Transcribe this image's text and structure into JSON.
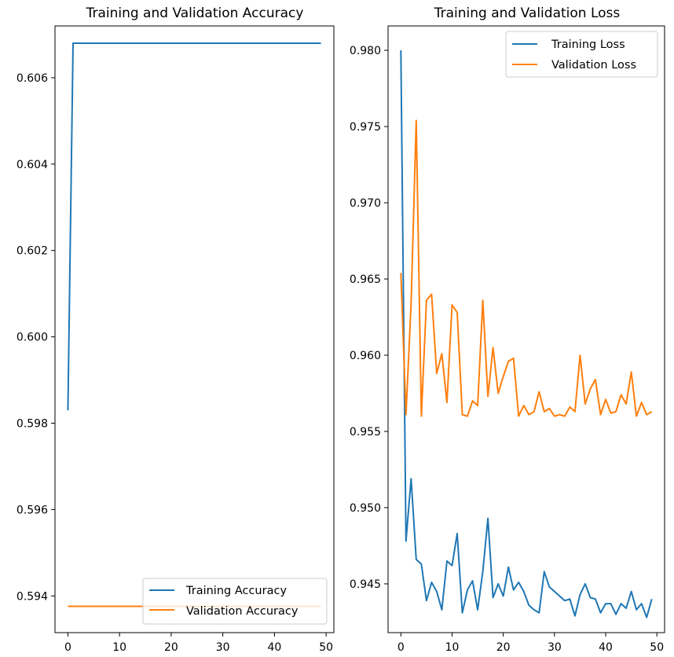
{
  "chart_data": [
    {
      "type": "line",
      "title": "Training and Validation Accuracy",
      "xlabel": "",
      "ylabel": "",
      "xlim": [
        -2.5,
        51.5
      ],
      "ylim": [
        0.59315,
        0.6072
      ],
      "xticks": [
        0,
        10,
        20,
        30,
        40,
        50
      ],
      "yticks": [
        0.594,
        0.596,
        0.598,
        0.6,
        0.602,
        0.604,
        0.606
      ],
      "ytick_labels": [
        "0.594",
        "0.596",
        "0.598",
        "0.600",
        "0.602",
        "0.604",
        "0.606"
      ],
      "legend_position": "lower right",
      "series": [
        {
          "name": "Training Accuracy",
          "color": "#1f77b4",
          "x": [
            0,
            1,
            2,
            3,
            4,
            5,
            6,
            7,
            8,
            9,
            10,
            11,
            12,
            13,
            14,
            15,
            16,
            17,
            18,
            19,
            20,
            21,
            22,
            23,
            24,
            25,
            26,
            27,
            28,
            29,
            30,
            31,
            32,
            33,
            34,
            35,
            36,
            37,
            38,
            39,
            40,
            41,
            42,
            43,
            44,
            45,
            46,
            47,
            48,
            49
          ],
          "values": [
            0.5983,
            0.6068,
            0.6068,
            0.6068,
            0.6068,
            0.6068,
            0.6068,
            0.6068,
            0.6068,
            0.6068,
            0.6068,
            0.6068,
            0.6068,
            0.6068,
            0.6068,
            0.6068,
            0.6068,
            0.6068,
            0.6068,
            0.6068,
            0.6068,
            0.6068,
            0.6068,
            0.6068,
            0.6068,
            0.6068,
            0.6068,
            0.6068,
            0.6068,
            0.6068,
            0.6068,
            0.6068,
            0.6068,
            0.6068,
            0.6068,
            0.6068,
            0.6068,
            0.6068,
            0.6068,
            0.6068,
            0.6068,
            0.6068,
            0.6068,
            0.6068,
            0.6068,
            0.6068,
            0.6068,
            0.6068,
            0.6068,
            0.6068
          ]
        },
        {
          "name": "Validation Accuracy",
          "color": "#ff7f0e",
          "x": [
            0,
            1,
            2,
            3,
            4,
            5,
            6,
            7,
            8,
            9,
            10,
            11,
            12,
            13,
            14,
            15,
            16,
            17,
            18,
            19,
            20,
            21,
            22,
            23,
            24,
            25,
            26,
            27,
            28,
            29,
            30,
            31,
            32,
            33,
            34,
            35,
            36,
            37,
            38,
            39,
            40,
            41,
            42,
            43,
            44,
            45,
            46,
            47,
            48,
            49
          ],
          "values": [
            0.59376,
            0.59376,
            0.59376,
            0.59376,
            0.59376,
            0.59376,
            0.59376,
            0.59376,
            0.59376,
            0.59376,
            0.59376,
            0.59376,
            0.59376,
            0.59376,
            0.59376,
            0.59376,
            0.59376,
            0.59376,
            0.59376,
            0.59376,
            0.59376,
            0.59376,
            0.59376,
            0.59376,
            0.59376,
            0.59376,
            0.59376,
            0.59376,
            0.59376,
            0.59376,
            0.59376,
            0.59376,
            0.59376,
            0.59376,
            0.59376,
            0.59376,
            0.59376,
            0.59376,
            0.59376,
            0.59376,
            0.59376,
            0.59376,
            0.59376,
            0.59376,
            0.59376,
            0.59376,
            0.59376,
            0.59376,
            0.59376,
            0.59376
          ]
        }
      ]
    },
    {
      "type": "line",
      "title": "Training and Validation Loss",
      "xlabel": "",
      "ylabel": "",
      "xlim": [
        -2.5,
        51.5
      ],
      "ylim": [
        0.9418,
        0.9816
      ],
      "xticks": [
        0,
        10,
        20,
        30,
        40,
        50
      ],
      "yticks": [
        0.945,
        0.95,
        0.955,
        0.96,
        0.965,
        0.97,
        0.975,
        0.98
      ],
      "ytick_labels": [
        "0.945",
        "0.950",
        "0.955",
        "0.960",
        "0.965",
        "0.970",
        "0.975",
        "0.980"
      ],
      "legend_position": "upper right",
      "series": [
        {
          "name": "Training Loss",
          "color": "#1f77b4",
          "x": [
            0,
            1,
            2,
            3,
            4,
            5,
            6,
            7,
            8,
            9,
            10,
            11,
            12,
            13,
            14,
            15,
            16,
            17,
            18,
            19,
            20,
            21,
            22,
            23,
            24,
            25,
            26,
            27,
            28,
            29,
            30,
            31,
            32,
            33,
            34,
            35,
            36,
            37,
            38,
            39,
            40,
            41,
            42,
            43,
            44,
            45,
            46,
            47,
            48,
            49
          ],
          "values": [
            0.98,
            0.9478,
            0.9519,
            0.9466,
            0.9463,
            0.9439,
            0.9451,
            0.9445,
            0.9433,
            0.9465,
            0.9462,
            0.9483,
            0.9431,
            0.9446,
            0.9452,
            0.9433,
            0.9458,
            0.9493,
            0.9441,
            0.945,
            0.9442,
            0.9461,
            0.9446,
            0.9451,
            0.9445,
            0.9436,
            0.9433,
            0.9431,
            0.9458,
            0.9448,
            0.9445,
            0.9442,
            0.9439,
            0.944,
            0.9429,
            0.9443,
            0.945,
            0.9441,
            0.944,
            0.9431,
            0.9437,
            0.9437,
            0.943,
            0.9437,
            0.9434,
            0.9445,
            0.9433,
            0.9437,
            0.9428,
            0.944
          ]
        },
        {
          "name": "Validation Loss",
          "color": "#ff7f0e",
          "x": [
            0,
            1,
            2,
            3,
            4,
            5,
            6,
            7,
            8,
            9,
            10,
            11,
            12,
            13,
            14,
            15,
            16,
            17,
            18,
            19,
            20,
            21,
            22,
            23,
            24,
            25,
            26,
            27,
            28,
            29,
            30,
            31,
            32,
            33,
            34,
            35,
            36,
            37,
            38,
            39,
            40,
            41,
            42,
            43,
            44,
            45,
            46,
            47,
            48,
            49
          ],
          "values": [
            0.9654,
            0.9561,
            0.9634,
            0.9754,
            0.956,
            0.9636,
            0.964,
            0.9588,
            0.9601,
            0.9569,
            0.9633,
            0.9628,
            0.9561,
            0.956,
            0.957,
            0.9567,
            0.9636,
            0.9573,
            0.9605,
            0.9575,
            0.9586,
            0.9596,
            0.9598,
            0.956,
            0.9567,
            0.9561,
            0.9563,
            0.9576,
            0.9563,
            0.9565,
            0.956,
            0.9561,
            0.956,
            0.9566,
            0.9563,
            0.96,
            0.9568,
            0.9578,
            0.9584,
            0.9561,
            0.9571,
            0.9562,
            0.9563,
            0.9574,
            0.9568,
            0.9589,
            0.956,
            0.9569,
            0.9561,
            0.9563
          ]
        }
      ]
    }
  ]
}
